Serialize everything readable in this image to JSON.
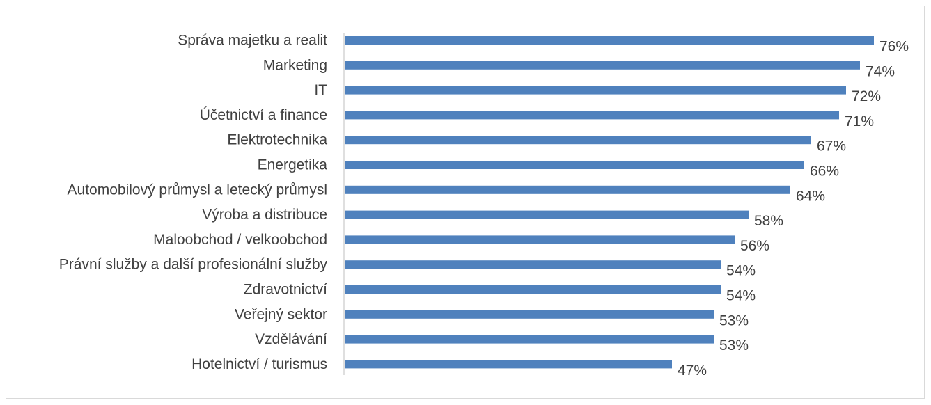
{
  "chart_data": {
    "type": "bar",
    "orientation": "horizontal",
    "categories": [
      "Správa majetku a realit",
      "Marketing",
      "IT",
      "Účetnictví a finance",
      "Elektrotechnika",
      "Energetika",
      "Automobilový průmysl a letecký průmysl",
      "Výroba a distribuce",
      "Maloobchod / velkoobchod",
      "Právní služby a další profesionální služby",
      "Zdravotnictví",
      "Veřejný sektor",
      "Vzdělávání",
      "Hotelnictví / turismus"
    ],
    "values": [
      76,
      74,
      72,
      71,
      67,
      66,
      64,
      58,
      56,
      54,
      54,
      53,
      53,
      47
    ],
    "value_labels": [
      "76%",
      "74%",
      "72%",
      "71%",
      "67%",
      "66%",
      "64%",
      "58%",
      "56%",
      "54%",
      "54%",
      "53%",
      "53%",
      "47%"
    ],
    "unit": "%",
    "xlim": [
      0,
      76
    ],
    "grid": false,
    "legend": "none",
    "colors": {
      "bar": "#4F81BD",
      "axis": "#BFBFBF",
      "text": "#404040"
    }
  }
}
